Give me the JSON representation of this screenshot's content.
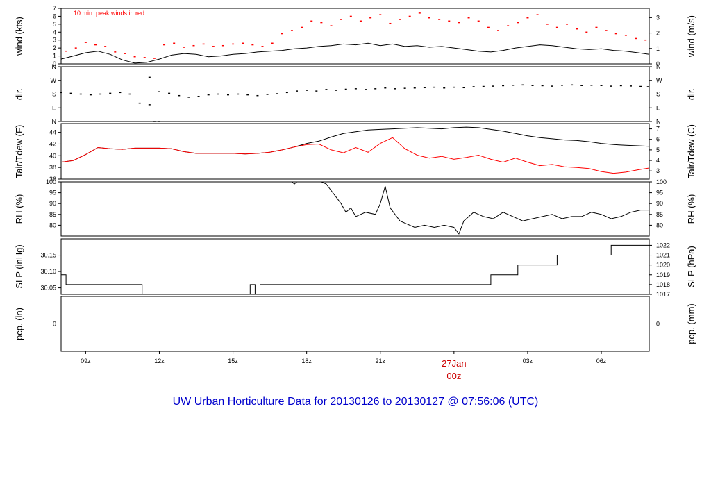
{
  "colors": {
    "axis": "#000000",
    "series_black": "#000000",
    "series_red": "#ff0000",
    "precip_line": "#0000cc",
    "footer": "#0000cc",
    "date": "#cc0000"
  },
  "footer": {
    "title": "UW Urban Horticulture Data for 20130126  to  20130127 @ 07:56:06  (UTC)"
  },
  "time_axis": {
    "start_hour": 8.0,
    "end_hour": 31.95,
    "ticks": [
      {
        "hour": 9,
        "label": "09z"
      },
      {
        "hour": 12,
        "label": "12z"
      },
      {
        "hour": 15,
        "label": "15z"
      },
      {
        "hour": 18,
        "label": "18z"
      },
      {
        "hour": 21,
        "label": "21z"
      },
      {
        "hour": 27,
        "label": "03z"
      },
      {
        "hour": 30,
        "label": "06z"
      }
    ],
    "date_label": {
      "hour": 24,
      "line1": "27Jan",
      "line2": "00z"
    }
  },
  "chart_data": [
    {
      "type": "line",
      "id": "wind",
      "left_label": "wind (kts)",
      "right_label": "wind (m/s)",
      "note": "10 min. peak winds in red",
      "ylim": [
        0,
        7
      ],
      "left_ticks": [
        "0",
        "1",
        "2",
        "3",
        "4",
        "5",
        "6",
        "7"
      ],
      "left_tick_values": [
        0,
        1,
        2,
        3,
        4,
        5,
        6,
        7
      ],
      "right_ticks": [
        "0",
        "1",
        "2",
        "3"
      ],
      "right_tick_values": [
        0,
        1,
        2,
        3
      ],
      "right_scale_factor": 0.5144,
      "series": [
        {
          "kind": "line",
          "color": "#000000",
          "x": [
            8.0,
            8.5,
            9.0,
            9.5,
            10.0,
            10.5,
            11.0,
            11.5,
            12.0,
            12.5,
            13.0,
            13.5,
            14.0,
            14.5,
            15.0,
            15.5,
            16.0,
            16.5,
            17.0,
            17.5,
            18.0,
            18.5,
            19.0,
            19.5,
            20.0,
            20.5,
            21.0,
            21.5,
            22.0,
            22.5,
            23.0,
            23.5,
            24.0,
            24.5,
            25.0,
            25.5,
            26.0,
            26.5,
            27.0,
            27.5,
            28.0,
            28.5,
            29.0,
            29.5,
            30.0,
            30.5,
            31.0,
            31.5,
            31.95
          ],
          "y": [
            0.6,
            1.0,
            1.4,
            1.6,
            1.2,
            0.5,
            0.1,
            0.2,
            0.6,
            1.1,
            1.3,
            1.2,
            0.9,
            1.0,
            1.2,
            1.3,
            1.5,
            1.6,
            1.7,
            1.9,
            2.0,
            2.2,
            2.3,
            2.5,
            2.4,
            2.6,
            2.3,
            2.5,
            2.2,
            2.3,
            2.1,
            2.2,
            2.0,
            1.8,
            1.6,
            1.5,
            1.7,
            2.0,
            2.2,
            2.4,
            2.3,
            2.1,
            1.9,
            1.8,
            1.9,
            1.7,
            1.6,
            1.4,
            1.2
          ]
        },
        {
          "kind": "points",
          "color": "#ff0000",
          "x": [
            8.2,
            8.6,
            9.0,
            9.4,
            9.8,
            10.2,
            10.6,
            11.0,
            11.4,
            11.8,
            12.2,
            12.6,
            13.0,
            13.4,
            13.8,
            14.2,
            14.6,
            15.0,
            15.4,
            15.8,
            16.2,
            16.6,
            17.0,
            17.4,
            17.8,
            18.2,
            18.6,
            19.0,
            19.4,
            19.8,
            20.2,
            20.6,
            21.0,
            21.4,
            21.8,
            22.2,
            22.6,
            23.0,
            23.4,
            23.8,
            24.2,
            24.6,
            25.0,
            25.4,
            25.8,
            26.2,
            26.6,
            27.0,
            27.4,
            27.8,
            28.2,
            28.6,
            29.0,
            29.4,
            29.8,
            30.2,
            30.6,
            31.0,
            31.4,
            31.8
          ],
          "y": [
            1.6,
            2.0,
            2.7,
            2.4,
            2.2,
            1.5,
            1.3,
            0.9,
            0.8,
            0.7,
            2.4,
            2.6,
            2.1,
            2.3,
            2.5,
            2.2,
            2.3,
            2.5,
            2.6,
            2.4,
            2.2,
            2.6,
            3.8,
            4.2,
            4.6,
            5.4,
            5.2,
            4.8,
            5.6,
            6.0,
            5.4,
            5.8,
            6.2,
            5.1,
            5.6,
            6.0,
            6.4,
            5.8,
            5.6,
            5.4,
            5.2,
            5.8,
            5.4,
            4.6,
            4.2,
            4.8,
            5.2,
            5.8,
            6.2,
            5.0,
            4.6,
            5.0,
            4.4,
            4.0,
            4.6,
            4.2,
            3.8,
            3.6,
            3.2,
            3.0
          ]
        }
      ]
    },
    {
      "type": "scatter",
      "id": "dir",
      "left_label": "dir.",
      "right_label": "dir.",
      "ylim": [
        0,
        360
      ],
      "left_ticks": [
        "N",
        "E",
        "S",
        "W",
        "N"
      ],
      "left_tick_values": [
        0,
        90,
        180,
        270,
        360
      ],
      "right_ticks": [
        "N",
        "E",
        "S",
        "W",
        "N"
      ],
      "right_tick_values": [
        0,
        90,
        180,
        270,
        360
      ],
      "series": [
        {
          "kind": "points",
          "color": "#000000",
          "x": [
            8.0,
            8.4,
            8.8,
            9.2,
            9.6,
            10.0,
            10.4,
            10.8,
            11.2,
            11.6,
            12.0,
            12.4,
            12.8,
            13.2,
            13.6,
            14.0,
            14.4,
            14.8,
            15.2,
            15.6,
            16.0,
            16.4,
            16.8,
            17.2,
            17.6,
            18.0,
            18.4,
            18.8,
            19.2,
            19.6,
            20.0,
            20.4,
            20.8,
            21.2,
            21.6,
            22.0,
            22.4,
            22.8,
            23.2,
            23.6,
            24.0,
            24.4,
            24.8,
            25.2,
            25.6,
            26.0,
            26.4,
            26.8,
            27.2,
            27.6,
            28.0,
            28.4,
            28.8,
            29.2,
            29.6,
            30.0,
            30.4,
            30.8,
            31.2,
            31.6,
            31.9
          ],
          "y": [
            190,
            185,
            180,
            175,
            180,
            185,
            190,
            180,
            120,
            110,
            195,
            185,
            170,
            160,
            165,
            175,
            180,
            175,
            180,
            175,
            170,
            178,
            182,
            190,
            200,
            205,
            200,
            210,
            205,
            212,
            215,
            210,
            215,
            220,
            215,
            218,
            220,
            222,
            225,
            220,
            225,
            222,
            228,
            230,
            232,
            235,
            238,
            240,
            236,
            235,
            232,
            238,
            240,
            236,
            238,
            236,
            232,
            235,
            233,
            230,
            228
          ]
        },
        {
          "kind": "points",
          "color": "#000000",
          "x": [
            11.6,
            11.8,
            12.0
          ],
          "y": [
            290,
            0,
            0
          ]
        }
      ]
    },
    {
      "type": "line",
      "id": "temp",
      "left_label": "Tair/Tdew (F)",
      "right_label": "Tair/Tdew (C)",
      "ylim": [
        36,
        45.5
      ],
      "left_ticks": [
        "36",
        "38",
        "40",
        "42",
        "44"
      ],
      "left_tick_values": [
        36,
        38,
        40,
        42,
        44
      ],
      "right_ticks": [
        "3",
        "4",
        "5",
        "6",
        "7"
      ],
      "right_tick_values": [
        37.4,
        39.2,
        41.0,
        42.8,
        44.6
      ],
      "series": [
        {
          "kind": "line",
          "color": "#000000",
          "name": "Tair",
          "x": [
            8.0,
            8.5,
            9.0,
            9.5,
            10.0,
            10.5,
            11.0,
            11.5,
            12.0,
            12.5,
            13.0,
            13.5,
            14.0,
            14.5,
            15.0,
            15.5,
            16.0,
            16.5,
            17.0,
            17.5,
            18.0,
            18.5,
            19.0,
            19.5,
            20.0,
            20.5,
            21.0,
            21.5,
            22.0,
            22.5,
            23.0,
            23.5,
            24.0,
            24.5,
            25.0,
            25.5,
            26.0,
            26.5,
            27.0,
            27.5,
            28.0,
            28.5,
            29.0,
            29.5,
            30.0,
            30.5,
            31.0,
            31.5,
            31.95
          ],
          "y": [
            38.9,
            39.2,
            40.2,
            41.4,
            41.2,
            41.1,
            41.3,
            41.3,
            41.3,
            41.2,
            40.7,
            40.4,
            40.4,
            40.4,
            40.4,
            40.3,
            40.4,
            40.6,
            41.0,
            41.5,
            42.1,
            42.5,
            43.2,
            43.8,
            44.1,
            44.4,
            44.5,
            44.6,
            44.7,
            44.8,
            44.7,
            44.6,
            44.8,
            44.9,
            44.8,
            44.5,
            44.2,
            43.8,
            43.4,
            43.1,
            42.9,
            42.7,
            42.6,
            42.4,
            42.1,
            41.9,
            41.8,
            41.7,
            41.6
          ]
        },
        {
          "kind": "line",
          "color": "#ff0000",
          "name": "Tdew",
          "x": [
            8.0,
            8.5,
            9.0,
            9.5,
            10.0,
            10.5,
            11.0,
            11.5,
            12.0,
            12.5,
            13.0,
            13.5,
            14.0,
            14.5,
            15.0,
            15.5,
            16.0,
            16.5,
            17.0,
            17.5,
            18.0,
            18.5,
            19.0,
            19.5,
            20.0,
            20.5,
            21.0,
            21.5,
            22.0,
            22.5,
            23.0,
            23.5,
            24.0,
            24.5,
            25.0,
            25.5,
            26.0,
            26.5,
            27.0,
            27.5,
            28.0,
            28.5,
            29.0,
            29.5,
            30.0,
            30.5,
            31.0,
            31.5,
            31.95
          ],
          "y": [
            38.9,
            39.2,
            40.2,
            41.4,
            41.2,
            41.1,
            41.3,
            41.3,
            41.3,
            41.2,
            40.7,
            40.4,
            40.4,
            40.4,
            40.4,
            40.3,
            40.4,
            40.6,
            41.0,
            41.5,
            41.9,
            42.0,
            41.0,
            40.5,
            41.4,
            40.6,
            42.1,
            43.1,
            41.2,
            40.1,
            39.6,
            39.9,
            39.4,
            39.7,
            40.1,
            39.4,
            38.9,
            39.6,
            38.9,
            38.3,
            38.5,
            38.1,
            38.0,
            37.8,
            37.3,
            37.0,
            37.2,
            37.6,
            37.9
          ]
        }
      ]
    },
    {
      "type": "line",
      "id": "rh",
      "left_label": "RH (%)",
      "right_label": "RH (%)",
      "ylim": [
        75,
        100
      ],
      "left_ticks": [
        "80",
        "85",
        "90",
        "95",
        "100"
      ],
      "left_tick_values": [
        80,
        85,
        90,
        95,
        100
      ],
      "right_ticks": [
        "80",
        "85",
        "90",
        "95",
        "100"
      ],
      "right_tick_values": [
        80,
        85,
        90,
        95,
        100
      ],
      "series": [
        {
          "kind": "line",
          "color": "#000000",
          "x": [
            8.0,
            17.4,
            17.5,
            17.6,
            18.0,
            18.6,
            18.8,
            19.0,
            19.2,
            19.4,
            19.6,
            19.8,
            20.0,
            20.4,
            20.8,
            21.0,
            21.2,
            21.4,
            21.6,
            21.8,
            22.0,
            22.4,
            22.8,
            23.2,
            23.6,
            24.0,
            24.2,
            24.4,
            24.8,
            25.2,
            25.6,
            26.0,
            26.4,
            26.8,
            27.2,
            27.6,
            28.0,
            28.4,
            28.8,
            29.2,
            29.6,
            30.0,
            30.4,
            30.8,
            31.2,
            31.6,
            31.95
          ],
          "y": [
            100,
            100,
            99,
            100,
            100,
            100,
            99,
            96,
            93,
            90,
            86,
            88,
            84,
            86,
            85,
            90,
            98,
            88,
            85,
            82,
            81,
            79,
            80,
            79,
            80,
            79,
            76,
            82,
            86,
            84,
            83,
            86,
            84,
            82,
            83,
            84,
            85,
            83,
            84,
            84,
            86,
            85,
            83,
            84,
            86,
            87,
            87
          ]
        }
      ]
    },
    {
      "type": "line",
      "id": "slp",
      "left_label": "SLP (inHg)",
      "right_label": "SLP (hPa)",
      "ylim": [
        30.03,
        30.2
      ],
      "left_ticks": [
        "30.05",
        "30.10",
        "30.15"
      ],
      "left_tick_values": [
        30.05,
        30.1,
        30.15
      ],
      "right_ticks": [
        "1017",
        "1018",
        "1019",
        "1020",
        "1021",
        "1022"
      ],
      "right_tick_values": [
        30.03,
        30.06,
        30.09,
        30.12,
        30.15,
        30.18
      ],
      "series": [
        {
          "kind": "step",
          "color": "#000000",
          "x": [
            8.0,
            8.2,
            11.3,
            15.7,
            15.8,
            15.9,
            16.1,
            24.3,
            25.5,
            26.6,
            27.1,
            28.2,
            30.4,
            31.95
          ],
          "y": [
            30.09,
            30.06,
            30.03,
            30.06,
            30.06,
            30.03,
            30.06,
            30.06,
            30.09,
            30.12,
            30.12,
            30.15,
            30.18,
            30.18
          ]
        }
      ]
    },
    {
      "type": "line",
      "id": "pcp",
      "left_label": "pcp. (in)",
      "right_label": "pcp. (mm)",
      "ylim": [
        -1,
        1
      ],
      "left_ticks": [
        "0"
      ],
      "left_tick_values": [
        0
      ],
      "right_ticks": [
        "0"
      ],
      "right_tick_values": [
        0
      ],
      "series": [
        {
          "kind": "line",
          "color": "#0000cc",
          "x": [
            8.0,
            31.95
          ],
          "y": [
            0,
            0
          ]
        }
      ]
    }
  ]
}
